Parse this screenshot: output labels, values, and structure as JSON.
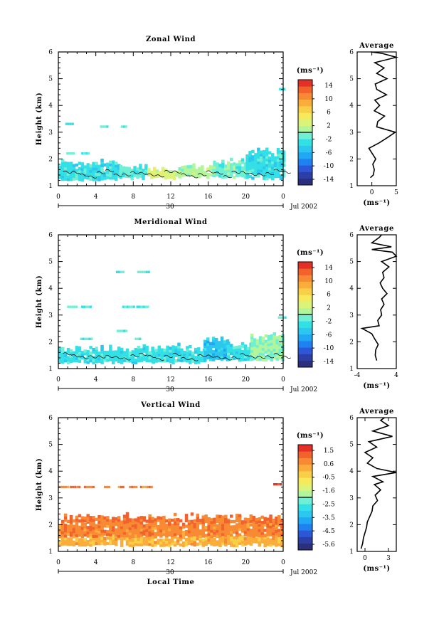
{
  "figure": {
    "day_label": "30",
    "date_label": "Jul 2002",
    "xlabel_bottom": "Local Time"
  },
  "chart_data": [
    {
      "type": "heatmap",
      "title": "Zonal Wind",
      "ylabel": "Height (km)",
      "xticks": [
        "0",
        "4",
        "8",
        "12",
        "16",
        "20",
        "0"
      ],
      "xlim": [
        0,
        24
      ],
      "ylim": [
        1,
        6
      ],
      "yticks": [
        "1",
        "2",
        "3",
        "4",
        "5",
        "6"
      ],
      "colorbar": {
        "label": "(ms⁻¹)",
        "ticks": [
          "14",
          "10",
          "6",
          "2",
          "-2",
          "-6",
          "-10",
          "-14"
        ],
        "range": [
          -16,
          16
        ]
      },
      "colorbar_colors": [
        "#2b2f7c",
        "#2d3fa6",
        "#2c57d6",
        "#1f82f0",
        "#20a8f4",
        "#2cc6ee",
        "#33e0e6",
        "#6ff0d4",
        "#b3f59a",
        "#dcf37a",
        "#f4ea5c",
        "#f9cf48",
        "#fbad3c",
        "#f98a34",
        "#f2622d",
        "#e33128"
      ],
      "bands": [
        {
          "y": [
            1.2,
            1.85
          ],
          "x": [
            0,
            6.5
          ],
          "value": -3
        },
        {
          "y": [
            1.25,
            1.7
          ],
          "x": [
            6.5,
            9.5
          ],
          "value": -2
        },
        {
          "y": [
            1.25,
            1.6
          ],
          "x": [
            9.5,
            12.5
          ],
          "value": 3
        },
        {
          "y": [
            1.3,
            1.65
          ],
          "x": [
            12.5,
            16.5
          ],
          "value": 1
        },
        {
          "y": [
            1.3,
            1.85
          ],
          "x": [
            16.5,
            20
          ],
          "value": -1
        },
        {
          "y": [
            1.25,
            2.25
          ],
          "x": [
            20,
            24
          ],
          "value": -3
        }
      ],
      "patches": [
        {
          "x": 1.2,
          "y": 3.3,
          "value": -2
        },
        {
          "x": 4.9,
          "y": 3.2,
          "value": -2
        },
        {
          "x": 7.0,
          "y": 3.2,
          "value": -2
        },
        {
          "x": 1.3,
          "y": 2.2,
          "value": -1
        },
        {
          "x": 2.9,
          "y": 2.2,
          "value": -2
        },
        {
          "x": 23.9,
          "y": 4.6,
          "value": -3
        }
      ],
      "profile": {
        "title": "Average",
        "xlabel": "(ms⁻¹)",
        "xticks": [
          "0",
          "5"
        ],
        "xlim": [
          -3,
          5
        ],
        "points": [
          [
            -0.3,
            1.3
          ],
          [
            0.3,
            1.4
          ],
          [
            0.5,
            1.6
          ],
          [
            0.2,
            1.8
          ],
          [
            0.8,
            2.0
          ],
          [
            0.1,
            2.2
          ],
          [
            -0.6,
            2.4
          ],
          [
            1.5,
            2.6
          ],
          [
            3.2,
            2.8
          ],
          [
            4.8,
            3.0
          ],
          [
            1.0,
            3.2
          ],
          [
            1.2,
            3.4
          ],
          [
            2.6,
            3.6
          ],
          [
            0.5,
            3.8
          ],
          [
            1.6,
            4.0
          ],
          [
            0.6,
            4.2
          ],
          [
            3.0,
            4.4
          ],
          [
            1.0,
            4.6
          ],
          [
            0.7,
            4.8
          ],
          [
            3.1,
            5.0
          ],
          [
            1.0,
            5.2
          ],
          [
            2.5,
            5.4
          ],
          [
            0.6,
            5.6
          ],
          [
            5.0,
            5.8
          ],
          [
            2.0,
            5.95
          ],
          [
            -0.2,
            6.0
          ]
        ]
      }
    },
    {
      "type": "heatmap",
      "title": "Meridional Wind",
      "ylabel": "Height (km)",
      "xticks": [
        "0",
        "4",
        "8",
        "12",
        "16",
        "20",
        "0"
      ],
      "xlim": [
        0,
        24
      ],
      "ylim": [
        1,
        6
      ],
      "yticks": [
        "1",
        "2",
        "3",
        "4",
        "5",
        "6"
      ],
      "colorbar": {
        "label": "(ms⁻¹)",
        "ticks": [
          "14",
          "10",
          "6",
          "2",
          "-2",
          "-6",
          "-10",
          "-14"
        ],
        "range": [
          -16,
          16
        ]
      },
      "colorbar_colors": [
        "#2b2f7c",
        "#2d3fa6",
        "#2c57d6",
        "#1f82f0",
        "#20a8f4",
        "#2cc6ee",
        "#33e0e6",
        "#6ff0d4",
        "#b3f59a",
        "#dcf37a",
        "#f4ea5c",
        "#f9cf48",
        "#fbad3c",
        "#f98a34",
        "#f2622d",
        "#e33128"
      ],
      "bands": [
        {
          "y": [
            1.2,
            1.7
          ],
          "x": [
            0,
            10
          ],
          "value": -3
        },
        {
          "y": [
            1.2,
            1.75
          ],
          "x": [
            10,
            15.5
          ],
          "value": -3
        },
        {
          "y": [
            1.3,
            2.0
          ],
          "x": [
            15.5,
            18
          ],
          "value": -5
        },
        {
          "y": [
            1.3,
            1.9
          ],
          "x": [
            18,
            20.5
          ],
          "value": -3
        },
        {
          "y": [
            1.3,
            2.2
          ],
          "x": [
            20.5,
            24
          ],
          "value": 0
        }
      ],
      "patches": [
        {
          "x": 6.6,
          "y": 4.6,
          "value": -2
        },
        {
          "x": 9.1,
          "y": 4.6,
          "value": -2
        },
        {
          "x": 1.5,
          "y": 3.3,
          "value": -2
        },
        {
          "x": 3.0,
          "y": 3.3,
          "value": -2
        },
        {
          "x": 7.5,
          "y": 3.3,
          "value": -2
        },
        {
          "x": 9.0,
          "y": 3.3,
          "value": -2
        },
        {
          "x": 6.8,
          "y": 2.4,
          "value": -2
        },
        {
          "x": 3.0,
          "y": 2.1,
          "value": -2
        },
        {
          "x": 8.5,
          "y": 2.1,
          "value": -2
        },
        {
          "x": 23.9,
          "y": 2.9,
          "value": -2
        }
      ],
      "profile": {
        "title": "Average",
        "xlabel": "(ms⁻¹)",
        "xticks": [
          "-4",
          "4"
        ],
        "xlim": [
          -4,
          4
        ],
        "points": [
          [
            0.0,
            1.3
          ],
          [
            -0.3,
            1.5
          ],
          [
            -0.2,
            1.7
          ],
          [
            0.3,
            1.9
          ],
          [
            -0.4,
            2.1
          ],
          [
            -1.0,
            2.3
          ],
          [
            -3.0,
            2.5
          ],
          [
            0.5,
            2.6
          ],
          [
            0.2,
            2.8
          ],
          [
            1.0,
            3.0
          ],
          [
            0.8,
            3.2
          ],
          [
            1.5,
            3.4
          ],
          [
            1.0,
            3.6
          ],
          [
            2.1,
            3.8
          ],
          [
            1.2,
            4.0
          ],
          [
            0.7,
            4.2
          ],
          [
            1.5,
            4.4
          ],
          [
            1.2,
            4.6
          ],
          [
            2.5,
            4.8
          ],
          [
            1.0,
            5.0
          ],
          [
            4.0,
            5.2
          ],
          [
            3.2,
            5.35
          ],
          [
            -1.0,
            5.45
          ],
          [
            3.0,
            5.55
          ],
          [
            -1.0,
            5.7
          ],
          [
            0.5,
            5.9
          ],
          [
            1.0,
            6.0
          ]
        ]
      }
    },
    {
      "type": "heatmap",
      "title": "Vertical Wind",
      "ylabel": "Height (km)",
      "xlabel": "Local Time",
      "xticks": [
        "0",
        "4",
        "8",
        "12",
        "16",
        "20",
        "0"
      ],
      "xlim": [
        0,
        24
      ],
      "ylim": [
        1,
        6
      ],
      "yticks": [
        "1",
        "2",
        "3",
        "4",
        "5",
        "6"
      ],
      "colorbar": {
        "label": "(ms⁻¹)",
        "ticks": [
          "1.5",
          "0.6",
          "-0.5",
          "-1.6",
          "-2.5",
          "-3.5",
          "-4.5",
          "-5.6"
        ],
        "range": [
          -6.0,
          2.0
        ]
      },
      "colorbar_colors": [
        "#2b2f7c",
        "#2d3fa6",
        "#2c57d6",
        "#1f82f0",
        "#20a8f4",
        "#2cc6ee",
        "#33e0e6",
        "#6ff0d4",
        "#b3f59a",
        "#dcf37a",
        "#f4ea5c",
        "#f9cf48",
        "#fbad3c",
        "#f98a34",
        "#f2622d",
        "#e33128"
      ],
      "bands": [
        {
          "y": [
            1.2,
            1.55
          ],
          "x": [
            0,
            24
          ],
          "value": 0.2
        },
        {
          "y": [
            1.55,
            2.05
          ],
          "x": [
            0,
            24
          ],
          "value": 0.8
        },
        {
          "y": [
            2.05,
            2.25
          ],
          "x": [
            0.3,
            24
          ],
          "value": 1.0
        }
      ],
      "patches": [
        {
          "x": 0.6,
          "y": 3.4,
          "value": 0.8
        },
        {
          "x": 1.8,
          "y": 3.4,
          "value": 0.8
        },
        {
          "x": 3.3,
          "y": 3.4,
          "value": 0.8
        },
        {
          "x": 5.2,
          "y": 3.4,
          "value": 0.8
        },
        {
          "x": 6.7,
          "y": 3.4,
          "value": 0.8
        },
        {
          "x": 8.0,
          "y": 3.4,
          "value": 0.8
        },
        {
          "x": 9.4,
          "y": 3.4,
          "value": 0.8
        },
        {
          "x": 23.4,
          "y": 3.5,
          "value": 1.8
        }
      ],
      "profile": {
        "title": "Average",
        "xlabel": "(ms⁻¹)",
        "xticks": [
          "0",
          "3"
        ],
        "xlim": [
          -1,
          4
        ],
        "points": [
          [
            -0.5,
            1.1
          ],
          [
            -0.3,
            1.3
          ],
          [
            -0.2,
            1.5
          ],
          [
            0.0,
            1.7
          ],
          [
            0.2,
            1.9
          ],
          [
            0.3,
            2.1
          ],
          [
            0.6,
            2.3
          ],
          [
            0.9,
            2.5
          ],
          [
            1.0,
            2.7
          ],
          [
            1.6,
            2.9
          ],
          [
            1.3,
            3.1
          ],
          [
            2.0,
            3.3
          ],
          [
            1.2,
            3.5
          ],
          [
            2.3,
            3.6
          ],
          [
            1.0,
            3.8
          ],
          [
            4.0,
            3.95
          ],
          [
            1.5,
            4.1
          ],
          [
            0.3,
            4.3
          ],
          [
            1.0,
            4.5
          ],
          [
            0.0,
            4.7
          ],
          [
            1.5,
            4.9
          ],
          [
            0.5,
            5.1
          ],
          [
            3.5,
            5.3
          ],
          [
            1.0,
            5.5
          ],
          [
            3.0,
            5.7
          ],
          [
            2.0,
            5.9
          ],
          [
            2.5,
            6.0
          ]
        ]
      }
    }
  ]
}
